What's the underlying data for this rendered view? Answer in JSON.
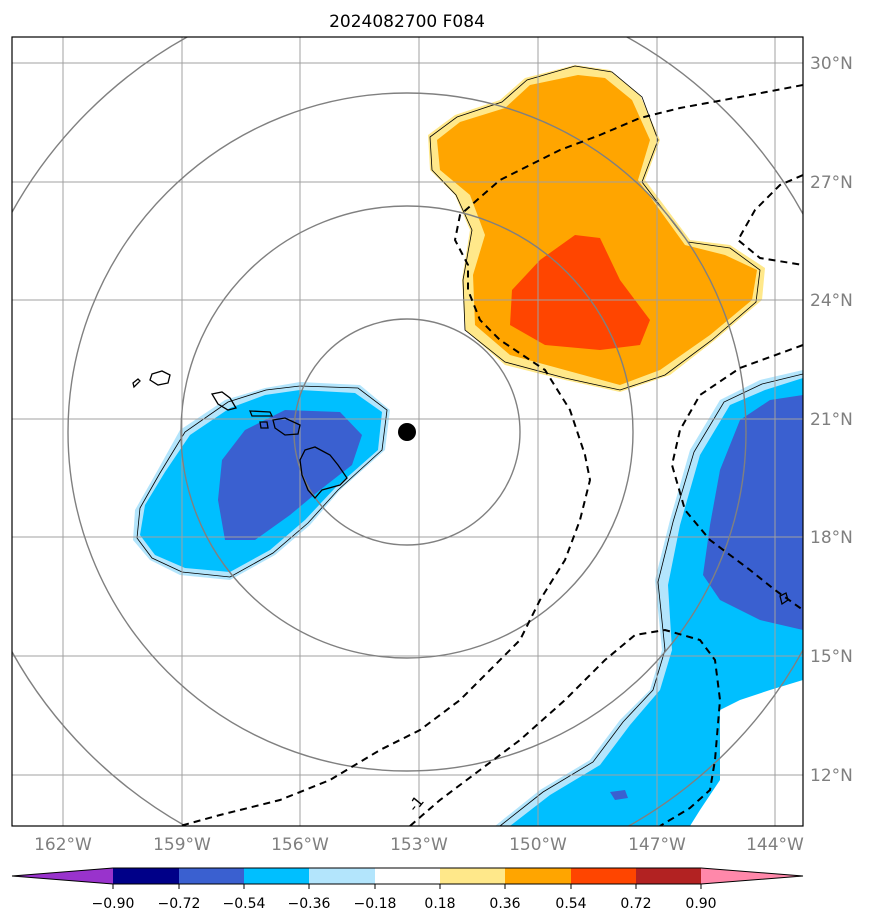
{
  "title": "2024082700 F084",
  "colors": {
    "c_neg_090": "#9933cc",
    "c_neg_072": "#000088",
    "c_neg_054": "#3a60d0",
    "c_neg_036": "#00bfff",
    "c_neg_018": "#b3e5fc",
    "c_zero": "#ffffff",
    "c_pos_018": "#ffe88a",
    "c_pos_036": "#ffa500",
    "c_pos_054": "#ff4500",
    "c_pos_072": "#b22222",
    "c_pos_090": "#ff88aa"
  },
  "lon_labels": [
    "162°W",
    "159°W",
    "156°W",
    "153°W",
    "150°W",
    "147°W",
    "144°W"
  ],
  "lat_labels": [
    "30°N",
    "27°N",
    "24°N",
    "21°N",
    "18°N",
    "15°N",
    "12°N"
  ],
  "colorbar_labels": [
    "−0.90",
    "−0.72",
    "−0.54",
    "−0.36",
    "−0.18",
    "0.18",
    "0.36",
    "0.54",
    "0.72",
    "0.90"
  ],
  "contour_label": "-1",
  "center_marker": {
    "lon": -153.3,
    "lat": 20.7
  }
}
